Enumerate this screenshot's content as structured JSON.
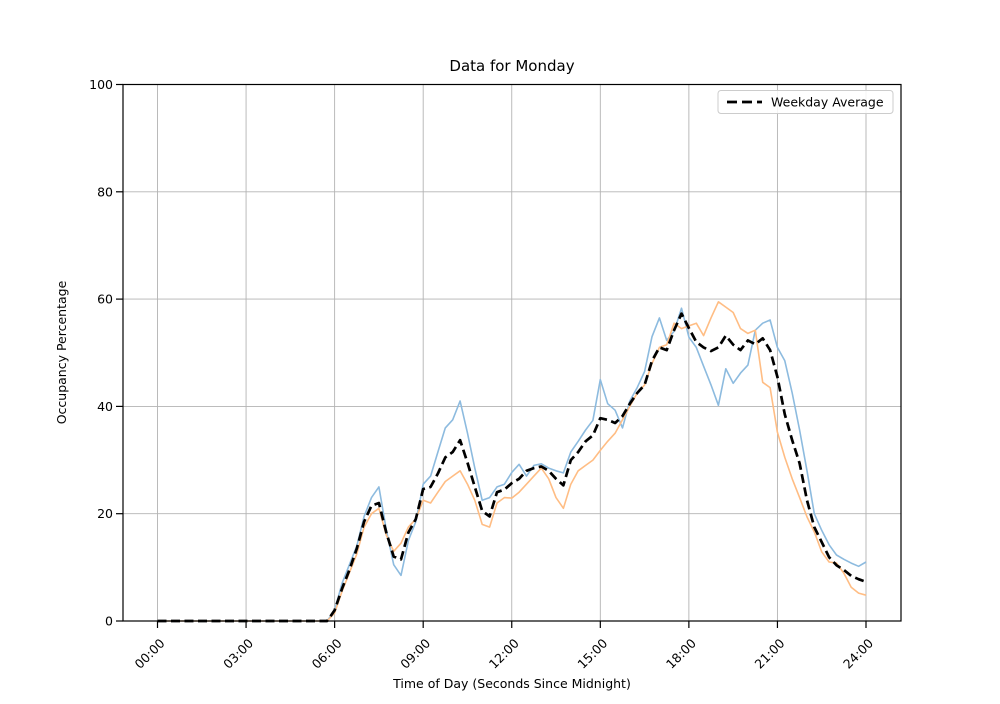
{
  "chart_data": {
    "type": "line",
    "title": "Data for Monday",
    "xlabel": "Time of Day (Seconds Since Midnight)",
    "ylabel": "Occupancy Percentage",
    "ylim": [
      0,
      100
    ],
    "grid": true,
    "grid_color": "#b3b3b3",
    "spine_color": "#000000",
    "xtick_hours": [
      0,
      3,
      6,
      9,
      12,
      15,
      18,
      21,
      24
    ],
    "xtick_labels": [
      "00:00",
      "03:00",
      "06:00",
      "09:00",
      "12:00",
      "15:00",
      "18:00",
      "21:00",
      "24:00"
    ],
    "ytick_values": [
      0,
      20,
      40,
      60,
      80,
      100
    ],
    "ytick_labels": [
      "0",
      "20",
      "40",
      "60",
      "80",
      "100"
    ],
    "legend": {
      "position": "upper-right",
      "entries": [
        {
          "label": "Weekday Average",
          "style": "dashed",
          "color": "#000000"
        }
      ]
    },
    "x": {
      "start_hour": 0,
      "step_hours": 0.25,
      "count": 97
    },
    "series": [
      {
        "name": "monday-series-blue",
        "color": "#8dbbdf",
        "style": "solid",
        "width": 1.6,
        "values": [
          0,
          0,
          0,
          0,
          0,
          0,
          0,
          0,
          0,
          0,
          0,
          0,
          0,
          0,
          0,
          0,
          0,
          0,
          0,
          0,
          0,
          0,
          0,
          0,
          2,
          7,
          10.5,
          14,
          19.5,
          23,
          25,
          17,
          10.5,
          8.5,
          15,
          18.5,
          25.5,
          27,
          31.5,
          36,
          37.5,
          41,
          35,
          28.5,
          22.5,
          23,
          25,
          25.5,
          27.7,
          29.2,
          27,
          29,
          29.3,
          28.5,
          28,
          27.6,
          31.5,
          33.5,
          35.6,
          37.4,
          45,
          40.5,
          39.3,
          36,
          41,
          43.5,
          46.5,
          53,
          56.5,
          52.3,
          54,
          58.3,
          52.9,
          51,
          47.5,
          44,
          40.2,
          47,
          44.3,
          46.2,
          47.7,
          54.2,
          55.5,
          56.1,
          51,
          48.5,
          42.5,
          35.6,
          28,
          20,
          16.9,
          14.2,
          12.3,
          11.5,
          10.8,
          10.2,
          11
        ]
      },
      {
        "name": "monday-series-orange",
        "color": "#ffbd84",
        "style": "solid",
        "width": 1.6,
        "values": [
          0,
          0,
          0,
          0,
          0,
          0,
          0,
          0,
          0,
          0,
          0,
          0,
          0,
          0,
          0,
          0,
          0,
          0,
          0,
          0,
          0,
          0,
          0,
          0,
          1.5,
          5.5,
          9,
          12.5,
          17.5,
          20,
          21,
          16,
          13,
          14.5,
          17.5,
          19,
          22.5,
          22,
          24,
          26,
          27,
          28,
          25.5,
          22.5,
          18,
          17.5,
          22,
          23,
          22.9,
          24,
          25.5,
          27,
          28.5,
          26.5,
          23,
          21,
          25.5,
          28,
          29,
          30,
          31.8,
          33.5,
          35,
          37.5,
          40,
          42.5,
          44,
          48,
          51,
          51.5,
          55.5,
          54.5,
          55,
          55.5,
          53.2,
          56.5,
          59.5,
          58.5,
          57.5,
          54.5,
          53.6,
          54.2,
          44.5,
          43.5,
          35.2,
          30.5,
          26.5,
          23,
          19.4,
          16.6,
          12.9,
          11,
          10.8,
          8.9,
          6.3,
          5.2,
          4.8
        ]
      },
      {
        "name": "weekday-average",
        "color": "#000000",
        "style": "dashed",
        "width": 2.7,
        "values": [
          0,
          0,
          0,
          0,
          0,
          0,
          0,
          0,
          0,
          0,
          0,
          0,
          0,
          0,
          0,
          0,
          0,
          0,
          0,
          0,
          0,
          0,
          0,
          0,
          2,
          6,
          9.5,
          13.5,
          18.5,
          21.5,
          22,
          16.5,
          12,
          11.5,
          16.5,
          19,
          24.6,
          25,
          27.5,
          30.5,
          31.5,
          33.7,
          29.5,
          25,
          20.5,
          19.5,
          24,
          24.5,
          25.7,
          26.5,
          28,
          28.5,
          28.8,
          28,
          26.5,
          25.3,
          30,
          31.5,
          33.5,
          34.6,
          37.8,
          37.5,
          36.9,
          38.2,
          40.5,
          42.5,
          44,
          48.5,
          51,
          50.5,
          54.2,
          57.3,
          54.6,
          52,
          51,
          50.3,
          51,
          53.2,
          51.5,
          50.5,
          52.3,
          51.6,
          52.7,
          50.5,
          45.5,
          38.5,
          33.7,
          29.4,
          22.5,
          17.5,
          14.7,
          11.9,
          10.4,
          9.5,
          8.4,
          7.8,
          7.3
        ]
      }
    ]
  }
}
